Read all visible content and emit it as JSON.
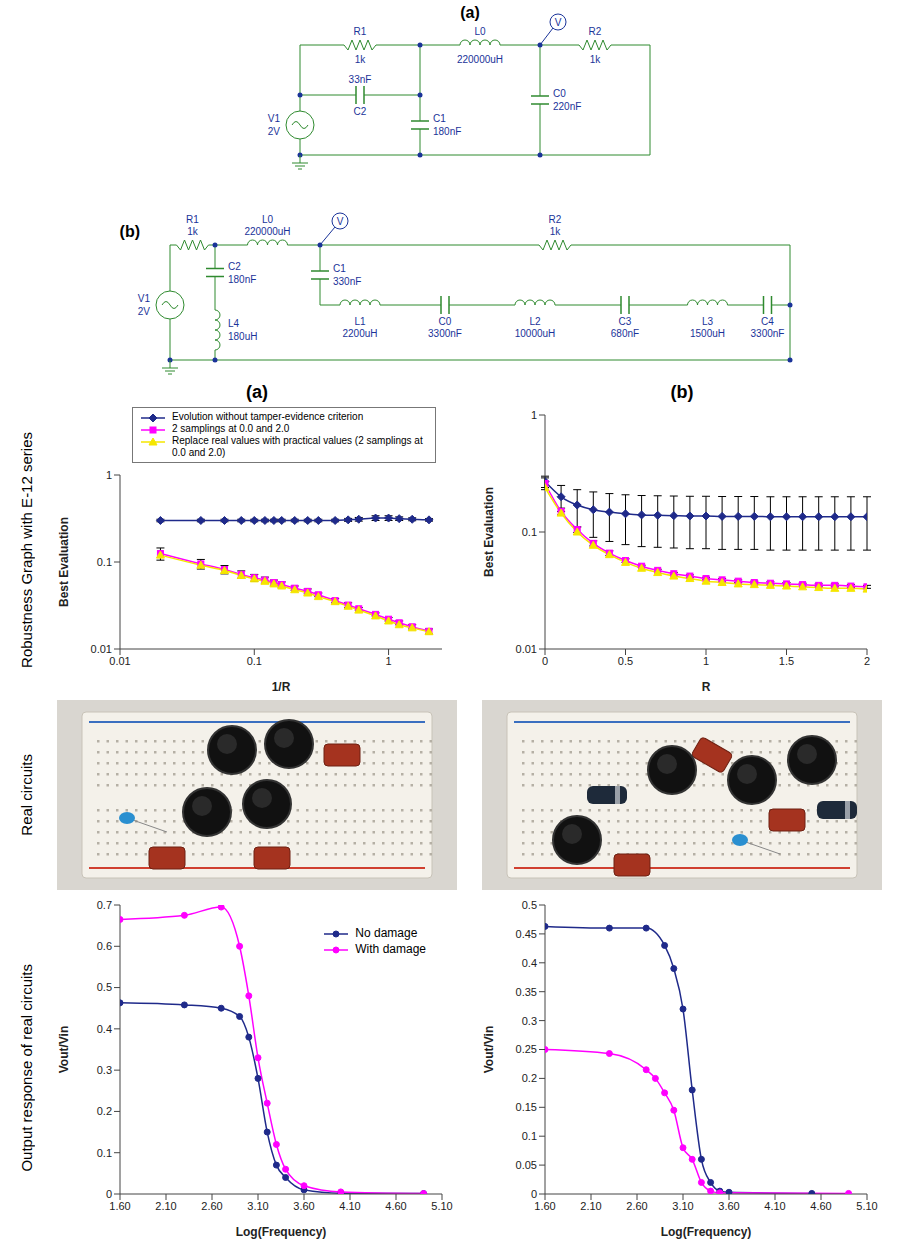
{
  "circuits": [
    {
      "label": "(a)",
      "probe": "V",
      "components": [
        {
          "name": "R1",
          "value": "1k"
        },
        {
          "name": "C2",
          "value": "33nF"
        },
        {
          "name": "C1",
          "value": "180nF"
        },
        {
          "name": "L0",
          "value": "220000uH"
        },
        {
          "name": "R2",
          "value": "1k"
        },
        {
          "name": "C0",
          "value": "220nF"
        },
        {
          "name": "V1",
          "value": "2V"
        }
      ]
    },
    {
      "label": "(b)",
      "probe": "V",
      "components": [
        {
          "name": "R1",
          "value": "1k"
        },
        {
          "name": "L0",
          "value": "220000uH"
        },
        {
          "name": "R2",
          "value": "1k"
        },
        {
          "name": "C2",
          "value": "180nF"
        },
        {
          "name": "L4",
          "value": "180uH"
        },
        {
          "name": "C1",
          "value": "330nF"
        },
        {
          "name": "L1",
          "value": "2200uH"
        },
        {
          "name": "C0",
          "value": "3300nF"
        },
        {
          "name": "L2",
          "value": "10000uH"
        },
        {
          "name": "C3",
          "value": "680nF"
        },
        {
          "name": "L3",
          "value": "1500uH"
        },
        {
          "name": "C4",
          "value": "3300nF"
        },
        {
          "name": "V1",
          "value": "2V"
        }
      ]
    }
  ],
  "columns": [
    "(a)",
    "(b)"
  ],
  "row_labels": [
    "Robustness Graph with E-12 series",
    "Real circuits",
    "Output response of real circuits"
  ],
  "chart_data": [
    {
      "type": "line",
      "log": true,
      "grid": false,
      "legend": "top",
      "xlabel": "1/R",
      "ylabel": "Best Evaluation",
      "xlim": [
        0.01,
        2.5
      ],
      "xticks": [
        0.01,
        0.1,
        1
      ],
      "ylim": [
        0.01,
        1
      ],
      "yticks": [
        0.01,
        0.1,
        1
      ],
      "series": [
        {
          "name": "Evolution without tamper-evidence criterion",
          "color": "#1f2a8a",
          "marker": "diamond",
          "x": [
            0.02,
            0.04,
            0.06,
            0.08,
            0.1,
            0.12,
            0.14,
            0.16,
            0.2,
            0.25,
            0.3,
            0.4,
            0.5,
            0.6,
            0.8,
            1,
            1.2,
            1.5,
            2
          ],
          "values": [
            0.3,
            0.3,
            0.3,
            0.3,
            0.3,
            0.3,
            0.3,
            0.3,
            0.3,
            0.3,
            0.3,
            0.3,
            0.305,
            0.31,
            0.32,
            0.32,
            0.315,
            0.31,
            0.305
          ],
          "errors": [
            0.01,
            0.01,
            0.01,
            0.01,
            0.01,
            0.01,
            0.01,
            0.01,
            0.01,
            0.01,
            0.01,
            0.01,
            0.012,
            0.015,
            0.02,
            0.02,
            0.015,
            0.012,
            0.01
          ]
        },
        {
          "name": "2 samplings at 0.0 and 2.0",
          "color": "#ff00ff",
          "marker": "square",
          "x": [
            0.02,
            0.04,
            0.06,
            0.08,
            0.1,
            0.12,
            0.14,
            0.16,
            0.2,
            0.25,
            0.3,
            0.4,
            0.5,
            0.6,
            0.8,
            1,
            1.2,
            1.5,
            2
          ],
          "values": [
            0.125,
            0.095,
            0.082,
            0.072,
            0.066,
            0.062,
            0.058,
            0.055,
            0.05,
            0.046,
            0.042,
            0.036,
            0.032,
            0.029,
            0.025,
            0.022,
            0.02,
            0.018,
            0.016
          ],
          "errors": [
            0.02,
            0.012,
            0.009,
            0.007,
            0.006,
            0.005,
            0.004,
            0.004,
            0.003,
            0.003,
            0.002,
            0.002,
            0.002,
            0.001,
            0.001,
            0.001,
            0.001,
            0.001,
            0.001
          ]
        },
        {
          "name": "Replace real values with practical values (2 samplings at 0.0 and 2.0)",
          "color": "#f5e600",
          "marker": "triangle",
          "x": [
            0.02,
            0.04,
            0.06,
            0.08,
            0.1,
            0.12,
            0.14,
            0.16,
            0.2,
            0.25,
            0.3,
            0.4,
            0.5,
            0.6,
            0.8,
            1,
            1.2,
            1.5,
            2
          ],
          "values": [
            0.12,
            0.092,
            0.08,
            0.07,
            0.064,
            0.06,
            0.056,
            0.053,
            0.048,
            0.044,
            0.04,
            0.035,
            0.031,
            0.028,
            0.024,
            0.021,
            0.019,
            0.0175,
            0.0158
          ]
        }
      ]
    },
    {
      "type": "line",
      "log": "y",
      "grid": false,
      "xlabel": "R",
      "ylabel": "Best Evaluation",
      "xlim": [
        0,
        2
      ],
      "xticks": [
        0,
        0.5,
        1,
        1.5,
        2
      ],
      "ylim": [
        0.01,
        1
      ],
      "yticks": [
        0.01,
        0.1,
        1
      ],
      "series": [
        {
          "color": "#1f2a8a",
          "marker": "diamond",
          "x": [
            0,
            0.1,
            0.2,
            0.3,
            0.4,
            0.5,
            0.6,
            0.7,
            0.8,
            0.9,
            1,
            1.1,
            1.2,
            1.3,
            1.4,
            1.5,
            1.6,
            1.7,
            1.8,
            1.9,
            2
          ],
          "values": [
            0.27,
            0.2,
            0.17,
            0.155,
            0.148,
            0.143,
            0.14,
            0.139,
            0.138,
            0.137,
            0.137,
            0.136,
            0.136,
            0.136,
            0.135,
            0.135,
            0.135,
            0.135,
            0.135,
            0.135,
            0.135
          ],
          "errors": [
            0.03,
            0.05,
            0.06,
            0.065,
            0.065,
            0.065,
            0.065,
            0.065,
            0.065,
            0.065,
            0.065,
            0.065,
            0.065,
            0.065,
            0.065,
            0.065,
            0.065,
            0.065,
            0.065,
            0.065,
            0.065
          ]
        },
        {
          "color": "#ff00ff",
          "marker": "square",
          "x": [
            0,
            0.1,
            0.2,
            0.3,
            0.4,
            0.5,
            0.6,
            0.7,
            0.8,
            0.9,
            1,
            1.1,
            1.2,
            1.3,
            1.4,
            1.5,
            1.6,
            1.7,
            1.8,
            1.9,
            2
          ],
          "values": [
            0.26,
            0.15,
            0.105,
            0.08,
            0.066,
            0.057,
            0.051,
            0.047,
            0.044,
            0.042,
            0.04,
            0.039,
            0.038,
            0.037,
            0.0365,
            0.036,
            0.0355,
            0.035,
            0.035,
            0.0345,
            0.034
          ],
          "errors": [
            0.03,
            0.01,
            0.006,
            0.004,
            0.003,
            0.002,
            0.001,
            0.001,
            0.001,
            0.001,
            0.001,
            0.001,
            0.001,
            0.001,
            0.001,
            0.001,
            0.001,
            0.001,
            0.001,
            0.001,
            0.001
          ]
        },
        {
          "color": "#f5e600",
          "marker": "triangle",
          "x": [
            0,
            0.1,
            0.2,
            0.3,
            0.4,
            0.5,
            0.6,
            0.7,
            0.8,
            0.9,
            1,
            1.1,
            1.2,
            1.3,
            1.4,
            1.5,
            1.6,
            1.7,
            1.8,
            1.9,
            2
          ],
          "values": [
            0.24,
            0.145,
            0.1,
            0.077,
            0.064,
            0.055,
            0.049,
            0.045,
            0.042,
            0.04,
            0.038,
            0.037,
            0.036,
            0.0355,
            0.035,
            0.0345,
            0.034,
            0.0335,
            0.033,
            0.033,
            0.0325
          ]
        }
      ]
    },
    {
      "type": "line",
      "grid": false,
      "legend": "upper right",
      "xlabel": "Log(Frequency)",
      "ylabel": "Vout/Vin",
      "xlim": [
        1.6,
        5.1
      ],
      "xticks": [
        {
          "value": 1.6,
          "label": "1.60"
        },
        {
          "value": 2.1,
          "label": "2.10"
        },
        {
          "value": 2.6,
          "label": "2.60"
        },
        {
          "value": 3.1,
          "label": "3.10"
        },
        {
          "value": 3.6,
          "label": "3.60"
        },
        {
          "value": 4.1,
          "label": "4.10"
        },
        {
          "value": 4.6,
          "label": "4.60"
        },
        {
          "value": 5.1,
          "label": "5.10"
        }
      ],
      "ylim": [
        0,
        0.7
      ],
      "yticks": [
        0,
        0.1,
        0.2,
        0.3,
        0.4,
        0.5,
        0.6,
        0.7
      ],
      "series": [
        {
          "name": "No damage",
          "color": "#1f2a8a",
          "marker": "circle",
          "x": [
            1.6,
            2.3,
            2.7,
            2.9,
            3.0,
            3.1,
            3.2,
            3.3,
            3.4,
            3.6,
            4.0,
            4.9
          ],
          "values": [
            0.463,
            0.458,
            0.45,
            0.43,
            0.38,
            0.28,
            0.15,
            0.07,
            0.04,
            0.01,
            0.002,
            0.001
          ]
        },
        {
          "name": "With damage",
          "color": "#ff00ff",
          "marker": "circle",
          "x": [
            1.6,
            2.3,
            2.7,
            2.9,
            3.0,
            3.1,
            3.2,
            3.3,
            3.4,
            3.6,
            4.0,
            4.9
          ],
          "values": [
            0.665,
            0.675,
            0.695,
            0.6,
            0.48,
            0.33,
            0.22,
            0.12,
            0.06,
            0.02,
            0.005,
            0.001
          ]
        }
      ]
    },
    {
      "type": "line",
      "grid": false,
      "xlabel": "Log(Frequency)",
      "ylabel": "Vout/Vin",
      "xlim": [
        1.6,
        5.1
      ],
      "xticks": [
        {
          "value": 1.6,
          "label": "1.60"
        },
        {
          "value": 2.1,
          "label": "2.10"
        },
        {
          "value": 2.6,
          "label": "2.60"
        },
        {
          "value": 3.1,
          "label": "3.10"
        },
        {
          "value": 3.6,
          "label": "3.60"
        },
        {
          "value": 4.1,
          "label": "4.10"
        },
        {
          "value": 4.6,
          "label": "4.60"
        },
        {
          "value": 5.1,
          "label": "5.10"
        }
      ],
      "ylim": [
        0,
        0.5
      ],
      "yticks": [
        0,
        0.05,
        0.1,
        0.15,
        0.2,
        0.25,
        0.3,
        0.35,
        0.4,
        0.45,
        0.5
      ],
      "series": [
        {
          "color": "#1f2a8a",
          "marker": "circle",
          "x": [
            1.6,
            2.3,
            2.7,
            2.9,
            3.0,
            3.1,
            3.2,
            3.3,
            3.4,
            3.5,
            3.6,
            4.5
          ],
          "values": [
            0.463,
            0.46,
            0.46,
            0.43,
            0.39,
            0.32,
            0.18,
            0.06,
            0.02,
            0.005,
            0.003,
            0.001
          ]
        },
        {
          "color": "#ff00ff",
          "marker": "circle",
          "x": [
            1.6,
            2.3,
            2.7,
            2.8,
            2.9,
            3.0,
            3.1,
            3.2,
            3.3,
            3.4,
            3.5,
            4.9
          ],
          "values": [
            0.25,
            0.243,
            0.215,
            0.2,
            0.175,
            0.145,
            0.08,
            0.06,
            0.02,
            0.005,
            0.002,
            0.001
          ]
        }
      ]
    }
  ]
}
